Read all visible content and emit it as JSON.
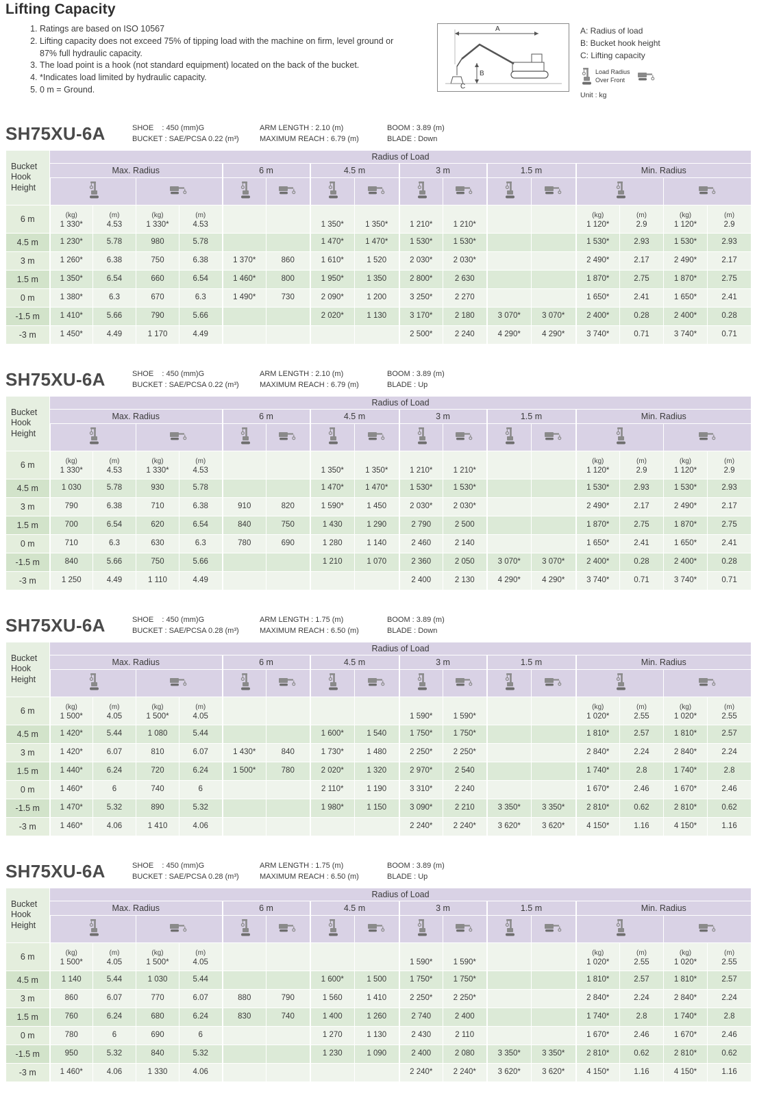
{
  "page": {
    "title": "Lifting Capacity",
    "notes": [
      "Ratings are based on ISO 10567",
      "Lifting capacity does not exceed 75% of tipping load with the machine on firm, level ground or 87% full hydraulic capacity.",
      "The load point is a hook (not standard equipment) located on the back of the bucket.",
      "*Indicates load limited by hydraulic capacity.",
      "0 m = Ground."
    ],
    "legend": {
      "a": "A: Radius of load",
      "b": "B: Bucket hook height",
      "c": "C: Lifting capacity",
      "load_radius_line1": "Load Radius",
      "load_radius_line2": "Over Front",
      "unit": "Unit : kg",
      "diagram_labels": {
        "a": "A",
        "b": "B",
        "c": "C"
      }
    }
  },
  "table_header": {
    "bucket_hook_height": "Bucket Hook Height",
    "radius_of_load": "Radius of Load",
    "columns": [
      "Max. Radius",
      "6 m",
      "4.5 m",
      "3 m",
      "1.5 m",
      "Min. Radius"
    ]
  },
  "units": [
    "(kg)",
    "(m)",
    "(kg)",
    "(m)",
    "",
    "",
    "",
    "",
    "",
    "",
    "",
    "",
    "(kg)",
    "(m)",
    "(kg)",
    "(m)"
  ],
  "colors": {
    "header_band": "#d9d2e5",
    "row_light": "#eff4ec",
    "row_dark": "#dcead7",
    "height_col": "#e6efe1",
    "icon_gray": "#8a8a8a"
  },
  "tables": [
    {
      "model": "SH75XU-6A",
      "specs": [
        {
          "l1": "SHOE    : 450 (mm)G",
          "l2": "BUCKET : SAE/PCSA 0.22 (m³)"
        },
        {
          "l1": "ARM LENGTH : 2.10 (m)",
          "l2": "MAXIMUM REACH : 6.79 (m)"
        },
        {
          "l1": "BOOM : 3.89 (m)",
          "l2": "BLADE : Down"
        }
      ],
      "rows": [
        {
          "h": "6 m",
          "c": [
            "1 330*",
            "4.53",
            "1 330*",
            "4.53",
            "",
            "",
            "1 350*",
            "1 350*",
            "1 210*",
            "1 210*",
            "",
            "",
            "1 120*",
            "2.9",
            "1 120*",
            "2.9"
          ]
        },
        {
          "h": "4.5 m",
          "c": [
            "1 230*",
            "5.78",
            "980",
            "5.78",
            "",
            "",
            "1 470*",
            "1 470*",
            "1 530*",
            "1 530*",
            "",
            "",
            "1 530*",
            "2.93",
            "1 530*",
            "2.93"
          ]
        },
        {
          "h": "3 m",
          "c": [
            "1 260*",
            "6.38",
            "750",
            "6.38",
            "1 370*",
            "860",
            "1 610*",
            "1 520",
            "2 030*",
            "2 030*",
            "",
            "",
            "2 490*",
            "2.17",
            "2 490*",
            "2.17"
          ]
        },
        {
          "h": "1.5 m",
          "c": [
            "1 350*",
            "6.54",
            "660",
            "6.54",
            "1 460*",
            "800",
            "1 950*",
            "1 350",
            "2 800*",
            "2 630",
            "",
            "",
            "1 870*",
            "2.75",
            "1 870*",
            "2.75"
          ]
        },
        {
          "h": "0 m",
          "c": [
            "1 380*",
            "6.3",
            "670",
            "6.3",
            "1 490*",
            "730",
            "2 090*",
            "1 200",
            "3 250*",
            "2 270",
            "",
            "",
            "1 650*",
            "2.41",
            "1 650*",
            "2.41"
          ]
        },
        {
          "h": "-1.5 m",
          "c": [
            "1 410*",
            "5.66",
            "790",
            "5.66",
            "",
            "",
            "2 020*",
            "1 130",
            "3 170*",
            "2 180",
            "3 070*",
            "3 070*",
            "2 400*",
            "0.28",
            "2 400*",
            "0.28"
          ]
        },
        {
          "h": "-3 m",
          "c": [
            "1 450*",
            "4.49",
            "1 170",
            "4.49",
            "",
            "",
            "",
            "",
            "2 500*",
            "2 240",
            "4 290*",
            "4 290*",
            "3 740*",
            "0.71",
            "3 740*",
            "0.71"
          ]
        }
      ]
    },
    {
      "model": "SH75XU-6A",
      "specs": [
        {
          "l1": "SHOE    : 450 (mm)G",
          "l2": "BUCKET : SAE/PCSA 0.22 (m³)"
        },
        {
          "l1": "ARM LENGTH : 2.10 (m)",
          "l2": "MAXIMUM REACH : 6.79 (m)"
        },
        {
          "l1": "BOOM : 3.89 (m)",
          "l2": "BLADE : Up"
        }
      ],
      "rows": [
        {
          "h": "6 m",
          "c": [
            "1 330*",
            "4.53",
            "1 330*",
            "4.53",
            "",
            "",
            "1 350*",
            "1 350*",
            "1 210*",
            "1 210*",
            "",
            "",
            "1 120*",
            "2.9",
            "1 120*",
            "2.9"
          ]
        },
        {
          "h": "4.5 m",
          "c": [
            "1 030",
            "5.78",
            "930",
            "5.78",
            "",
            "",
            "1 470*",
            "1 470*",
            "1 530*",
            "1 530*",
            "",
            "",
            "1 530*",
            "2.93",
            "1 530*",
            "2.93"
          ]
        },
        {
          "h": "3 m",
          "c": [
            "790",
            "6.38",
            "710",
            "6.38",
            "910",
            "820",
            "1 590*",
            "1 450",
            "2 030*",
            "2 030*",
            "",
            "",
            "2 490*",
            "2.17",
            "2 490*",
            "2.17"
          ]
        },
        {
          "h": "1.5 m",
          "c": [
            "700",
            "6.54",
            "620",
            "6.54",
            "840",
            "750",
            "1 430",
            "1 290",
            "2 790",
            "2 500",
            "",
            "",
            "1 870*",
            "2.75",
            "1 870*",
            "2.75"
          ]
        },
        {
          "h": "0 m",
          "c": [
            "710",
            "6.3",
            "630",
            "6.3",
            "780",
            "690",
            "1 280",
            "1 140",
            "2 460",
            "2 140",
            "",
            "",
            "1 650*",
            "2.41",
            "1 650*",
            "2.41"
          ]
        },
        {
          "h": "-1.5 m",
          "c": [
            "840",
            "5.66",
            "750",
            "5.66",
            "",
            "",
            "1 210",
            "1 070",
            "2 360",
            "2 050",
            "3 070*",
            "3 070*",
            "2 400*",
            "0.28",
            "2 400*",
            "0.28"
          ]
        },
        {
          "h": "-3 m",
          "c": [
            "1 250",
            "4.49",
            "1 110",
            "4.49",
            "",
            "",
            "",
            "",
            "2 400",
            "2 130",
            "4 290*",
            "4 290*",
            "3 740*",
            "0.71",
            "3 740*",
            "0.71"
          ]
        }
      ]
    },
    {
      "model": "SH75XU-6A",
      "specs": [
        {
          "l1": "SHOE    : 450 (mm)G",
          "l2": "BUCKET : SAE/PCSA 0.28 (m³)"
        },
        {
          "l1": "ARM LENGTH : 1.75 (m)",
          "l2": "MAXIMUM REACH : 6.50 (m)"
        },
        {
          "l1": "BOOM : 3.89 (m)",
          "l2": "BLADE : Down"
        }
      ],
      "rows": [
        {
          "h": "6 m",
          "c": [
            "1 500*",
            "4.05",
            "1 500*",
            "4.05",
            "",
            "",
            "",
            "",
            "1 590*",
            "1 590*",
            "",
            "",
            "1 020*",
            "2.55",
            "1 020*",
            "2.55"
          ]
        },
        {
          "h": "4.5 m",
          "c": [
            "1 420*",
            "5.44",
            "1 080",
            "5.44",
            "",
            "",
            "1 600*",
            "1 540",
            "1 750*",
            "1 750*",
            "",
            "",
            "1 810*",
            "2.57",
            "1 810*",
            "2.57"
          ]
        },
        {
          "h": "3 m",
          "c": [
            "1 420*",
            "6.07",
            "810",
            "6.07",
            "1 430*",
            "840",
            "1 730*",
            "1 480",
            "2 250*",
            "2 250*",
            "",
            "",
            "2 840*",
            "2.24",
            "2 840*",
            "2.24"
          ]
        },
        {
          "h": "1.5 m",
          "c": [
            "1 440*",
            "6.24",
            "720",
            "6.24",
            "1 500*",
            "780",
            "2 020*",
            "1 320",
            "2 970*",
            "2 540",
            "",
            "",
            "1 740*",
            "2.8",
            "1 740*",
            "2.8"
          ]
        },
        {
          "h": "0 m",
          "c": [
            "1 460*",
            "6",
            "740",
            "6",
            "",
            "",
            "2 110*",
            "1 190",
            "3 310*",
            "2 240",
            "",
            "",
            "1 670*",
            "2.46",
            "1 670*",
            "2.46"
          ]
        },
        {
          "h": "-1.5 m",
          "c": [
            "1 470*",
            "5.32",
            "890",
            "5.32",
            "",
            "",
            "1 980*",
            "1 150",
            "3 090*",
            "2 210",
            "3 350*",
            "3 350*",
            "2 810*",
            "0.62",
            "2 810*",
            "0.62"
          ]
        },
        {
          "h": "-3 m",
          "c": [
            "1 460*",
            "4.06",
            "1 410",
            "4.06",
            "",
            "",
            "",
            "",
            "2 240*",
            "2 240*",
            "3 620*",
            "3 620*",
            "4 150*",
            "1.16",
            "4 150*",
            "1.16"
          ]
        }
      ]
    },
    {
      "model": "SH75XU-6A",
      "specs": [
        {
          "l1": "SHOE    : 450 (mm)G",
          "l2": "BUCKET : SAE/PCSA 0.28 (m³)"
        },
        {
          "l1": "ARM LENGTH : 1.75 (m)",
          "l2": "MAXIMUM REACH : 6.50 (m)"
        },
        {
          "l1": "BOOM : 3.89 (m)",
          "l2": "BLADE : Up"
        }
      ],
      "rows": [
        {
          "h": "6 m",
          "c": [
            "1 500*",
            "4.05",
            "1 500*",
            "4.05",
            "",
            "",
            "",
            "",
            "1 590*",
            "1 590*",
            "",
            "",
            "1 020*",
            "2.55",
            "1 020*",
            "2.55"
          ]
        },
        {
          "h": "4.5 m",
          "c": [
            "1 140",
            "5.44",
            "1 030",
            "5.44",
            "",
            "",
            "1 600*",
            "1 500",
            "1 750*",
            "1 750*",
            "",
            "",
            "1 810*",
            "2.57",
            "1 810*",
            "2.57"
          ]
        },
        {
          "h": "3 m",
          "c": [
            "860",
            "6.07",
            "770",
            "6.07",
            "880",
            "790",
            "1 560",
            "1 410",
            "2 250*",
            "2 250*",
            "",
            "",
            "2 840*",
            "2.24",
            "2 840*",
            "2.24"
          ]
        },
        {
          "h": "1.5 m",
          "c": [
            "760",
            "6.24",
            "680",
            "6.24",
            "830",
            "740",
            "1 400",
            "1 260",
            "2 740",
            "2 400",
            "",
            "",
            "1 740*",
            "2.8",
            "1 740*",
            "2.8"
          ]
        },
        {
          "h": "0 m",
          "c": [
            "780",
            "6",
            "690",
            "6",
            "",
            "",
            "1 270",
            "1 130",
            "2 430",
            "2 110",
            "",
            "",
            "1 670*",
            "2.46",
            "1 670*",
            "2.46"
          ]
        },
        {
          "h": "-1.5 m",
          "c": [
            "950",
            "5.32",
            "840",
            "5.32",
            "",
            "",
            "1 230",
            "1 090",
            "2 400",
            "2 080",
            "3 350*",
            "3 350*",
            "2 810*",
            "0.62",
            "2 810*",
            "0.62"
          ]
        },
        {
          "h": "-3 m",
          "c": [
            "1 460*",
            "4.06",
            "1 330",
            "4.06",
            "",
            "",
            "",
            "",
            "2 240*",
            "2 240*",
            "3 620*",
            "3 620*",
            "4 150*",
            "1.16",
            "4 150*",
            "1.16"
          ]
        }
      ]
    }
  ]
}
